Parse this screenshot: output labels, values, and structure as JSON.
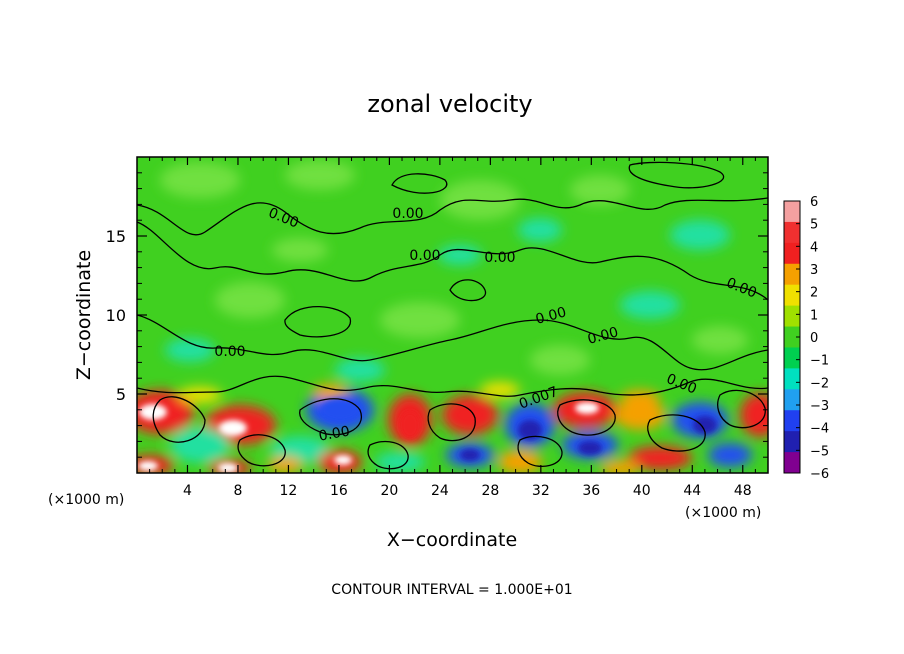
{
  "chart_data": {
    "type": "heatmap",
    "title": "zonal velocity",
    "xlabel": "X−coordinate",
    "ylabel": "Z−coordinate",
    "x_unit_left": "(×1000 m)",
    "x_unit_right": "(×1000 m)",
    "xlim": [
      0,
      50
    ],
    "ylim": [
      0,
      20
    ],
    "x_ticks": [
      4,
      8,
      12,
      16,
      20,
      24,
      28,
      32,
      36,
      40,
      44,
      48
    ],
    "x_tick_labels": [
      "4",
      "8",
      "12",
      "16",
      "20",
      "24",
      "28",
      "32",
      "36",
      "40",
      "44",
      "48"
    ],
    "y_ticks": [
      5,
      10,
      15
    ],
    "y_tick_labels": [
      "5",
      "10",
      "15"
    ],
    "colorbar": {
      "levels": [
        6,
        5,
        4,
        3,
        2,
        1,
        0,
        -1,
        -2,
        -3,
        -4,
        -5,
        -6
      ],
      "labels": [
        "6",
        "5",
        "4",
        "3",
        "2",
        "1",
        "0",
        "−1",
        "−2",
        "−3",
        "−4",
        "−5",
        "−6"
      ],
      "colors": [
        "#f4a0a0",
        "#f03030",
        "#f02020",
        "#f5a000",
        "#f0e000",
        "#a0e000",
        "#40d020",
        "#00d050",
        "#00e0c0",
        "#20a0f0",
        "#2040f0",
        "#2020b0",
        "#800090"
      ]
    },
    "contour_labels": [
      "0.00",
      "0.00",
      "0.00",
      "0.00",
      "0.00",
      "0.00",
      "0.00",
      "0.00",
      "0.00",
      "0.00",
      "0.007"
    ],
    "contour_interval_text": "CONTOUR INTERVAL = 1.000E+01",
    "field_colors": {
      "background": "#40d020",
      "light": "#70e040",
      "cyan": "#20e0a0",
      "red": "#f02020",
      "white": "#ffffff",
      "orange": "#f5a000",
      "blue": "#2050f0",
      "navy": "#2020b0",
      "yellow": "#f0e000"
    }
  }
}
